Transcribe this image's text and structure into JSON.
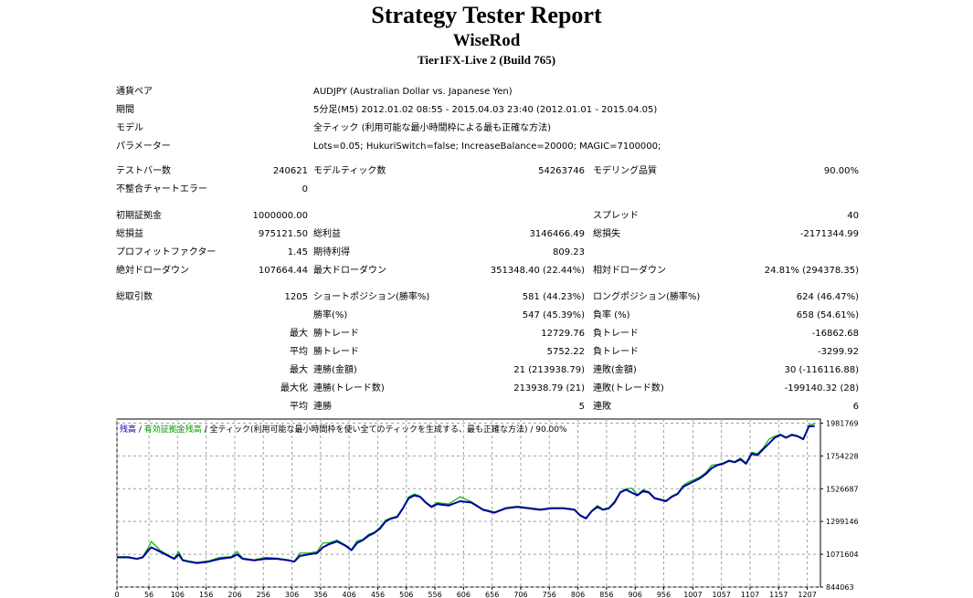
{
  "header": {
    "title": "Strategy Tester Report",
    "expert": "WiseRod",
    "server": "Tier1FX-Live 2 (Build 765)"
  },
  "info": {
    "symbol_label": "通貨ペア",
    "symbol_value": "AUDJPY (Australian Dollar vs. Japanese Yen)",
    "period_label": "期間",
    "period_value": "5分足(M5) 2012.01.02 08:55 - 2015.04.03 23:40 (2012.01.01 - 2015.04.05)",
    "model_label": "モデル",
    "model_value": "全ティック (利用可能な最小時間枠による最も正確な方法)",
    "params_label": "パラメーター",
    "params_value": "Lots=0.05; HukuriSwitch=false; IncreaseBalance=20000; MAGIC=7100000;"
  },
  "stats": {
    "bars_label": "テストバー数",
    "bars_value": "240621",
    "ticks_label": "モデルティック数",
    "ticks_value": "54263746",
    "quality_label": "モデリング品質",
    "quality_value": "90.00%",
    "mismatch_label": "不整合チャートエラー",
    "mismatch_value": "0",
    "deposit_label": "初期証拠金",
    "deposit_value": "1000000.00",
    "spread_label": "スプレッド",
    "spread_value": "40",
    "net_label": "総損益",
    "net_value": "975121.50",
    "gross_profit_label": "総利益",
    "gross_profit_value": "3146466.49",
    "gross_loss_label": "総損失",
    "gross_loss_value": "-2171344.99",
    "pf_label": "プロフィットファクター",
    "pf_value": "1.45",
    "expected_label": "期待利得",
    "expected_value": "809.23",
    "abs_dd_label": "絶対ドローダウン",
    "abs_dd_value": "107664.44",
    "max_dd_label": "最大ドローダウン",
    "max_dd_value": "351348.40 (22.44%)",
    "rel_dd_label": "相対ドローダウン",
    "rel_dd_value": "24.81% (294378.35)",
    "trades_label": "総取引数",
    "trades_value": "1205",
    "short_label": "ショートポジション(勝率%)",
    "short_value": "581 (44.23%)",
    "long_label": "ロングポジション(勝率%)",
    "long_value": "624 (46.47%)",
    "win_rate_label": "勝率(%)",
    "win_rate_value": "547 (45.39%)",
    "loss_rate_label": "負率 (%)",
    "loss_rate_value": "658 (54.61%)",
    "max_label": "最大",
    "win_trade_label": "勝トレード",
    "largest_win_value": "12729.76",
    "loss_trade_label": "負トレード",
    "largest_loss_value": "-16862.68",
    "avg_label": "平均",
    "avg_win_value": "5752.22",
    "avg_loss_value": "-3299.92",
    "consec_wins_money_label": "連勝(金額)",
    "consec_wins_money_value": "21 (213938.79)",
    "consec_losses_money_label": "連敗(金額)",
    "consec_losses_money_value": "30 (-116116.88)",
    "maxim_label": "最大化",
    "consec_profit_label": "連勝(トレード数)",
    "consec_profit_value": "213938.79 (21)",
    "consec_loss_label": "連敗(トレード数)",
    "consec_loss_value": "-199140.32 (28)",
    "consec_win_label": "連勝",
    "avg_consec_win_value": "5",
    "consec_lose_label": "連敗",
    "avg_consec_loss_value": "6"
  },
  "legend": {
    "balance": "残高",
    "sep1": " / ",
    "equity": "有効証拠金残高",
    "sep2": " / 全ティック(利用可能な最小時間枠を使い全てのティックを生成する、最も正確な方法) / 90.00%"
  },
  "colors": {
    "balance": "#0000a0",
    "equity": "#00b000",
    "grid": "#a0a0a0"
  },
  "chart_data": {
    "type": "line",
    "title": "",
    "xlabel": "",
    "ylabel": "",
    "xlim": [
      0,
      1230
    ],
    "ylim": [
      844063,
      2010000
    ],
    "x_ticks": [
      0,
      56,
      106,
      156,
      206,
      256,
      306,
      356,
      406,
      456,
      506,
      556,
      606,
      656,
      706,
      756,
      806,
      856,
      906,
      956,
      1007,
      1057,
      1107,
      1157,
      1207
    ],
    "y_ticks": [
      844063,
      1071604,
      1299146,
      1526687,
      1754228,
      1981769
    ],
    "grid": true,
    "legend_position": "top-left",
    "series": [
      {
        "name": "残高",
        "x": [
          0,
          20,
          35,
          45,
          55,
          60,
          75,
          90,
          100,
          108,
          115,
          125,
          140,
          160,
          180,
          200,
          210,
          220,
          240,
          260,
          280,
          300,
          310,
          320,
          335,
          350,
          360,
          370,
          385,
          400,
          410,
          420,
          430,
          440,
          450,
          460,
          470,
          480,
          490,
          500,
          510,
          520,
          530,
          540,
          550,
          560,
          580,
          600,
          620,
          640,
          660,
          680,
          700,
          720,
          740,
          760,
          780,
          800,
          810,
          820,
          830,
          840,
          850,
          860,
          870,
          880,
          890,
          900,
          910,
          920,
          930,
          940,
          950,
          960,
          970,
          980,
          990,
          1000,
          1010,
          1020,
          1030,
          1040,
          1050,
          1060,
          1070,
          1080,
          1090,
          1100,
          1110,
          1120,
          1130,
          1140,
          1150,
          1160,
          1170,
          1180,
          1190,
          1200,
          1210,
          1220
        ],
        "values": [
          1050000,
          1050000,
          1040000,
          1050000,
          1100000,
          1120000,
          1090000,
          1060000,
          1040000,
          1070000,
          1030000,
          1020000,
          1010000,
          1020000,
          1040000,
          1050000,
          1070000,
          1040000,
          1030000,
          1040000,
          1040000,
          1030000,
          1020000,
          1060000,
          1070000,
          1080000,
          1120000,
          1140000,
          1160000,
          1130000,
          1100000,
          1150000,
          1170000,
          1200000,
          1220000,
          1250000,
          1300000,
          1320000,
          1330000,
          1390000,
          1460000,
          1480000,
          1470000,
          1430000,
          1400000,
          1420000,
          1410000,
          1440000,
          1430000,
          1380000,
          1360000,
          1390000,
          1400000,
          1390000,
          1380000,
          1390000,
          1390000,
          1380000,
          1340000,
          1320000,
          1370000,
          1400000,
          1380000,
          1390000,
          1430000,
          1500000,
          1520000,
          1500000,
          1480000,
          1510000,
          1500000,
          1460000,
          1450000,
          1440000,
          1470000,
          1490000,
          1540000,
          1560000,
          1580000,
          1600000,
          1630000,
          1670000,
          1690000,
          1700000,
          1720000,
          1710000,
          1730000,
          1700000,
          1770000,
          1760000,
          1800000,
          1840000,
          1880000,
          1900000,
          1880000,
          1900000,
          1890000,
          1870000,
          1960000,
          1960000
        ]
      },
      {
        "name": "有効証拠金残高",
        "x": [
          0,
          20,
          35,
          45,
          55,
          60,
          75,
          90,
          100,
          108,
          115,
          125,
          140,
          160,
          180,
          200,
          210,
          220,
          240,
          260,
          280,
          300,
          310,
          320,
          335,
          350,
          360,
          370,
          385,
          400,
          410,
          420,
          430,
          440,
          450,
          460,
          470,
          480,
          490,
          500,
          510,
          520,
          530,
          540,
          550,
          560,
          580,
          600,
          620,
          640,
          660,
          680,
          700,
          720,
          740,
          760,
          780,
          800,
          810,
          820,
          830,
          840,
          850,
          860,
          870,
          880,
          890,
          900,
          910,
          920,
          930,
          940,
          950,
          960,
          970,
          980,
          990,
          1000,
          1010,
          1020,
          1030,
          1040,
          1050,
          1060,
          1070,
          1080,
          1090,
          1100,
          1110,
          1120,
          1130,
          1140,
          1150,
          1160,
          1170,
          1180,
          1190,
          1200,
          1210,
          1220
        ],
        "values": [
          1055000,
          1055000,
          1042000,
          1055000,
          1120000,
          1160000,
          1100000,
          1065000,
          1045000,
          1090000,
          1035000,
          1025000,
          1015000,
          1025000,
          1050000,
          1055000,
          1090000,
          1045000,
          1033000,
          1050000,
          1045000,
          1033000,
          1022000,
          1080000,
          1080000,
          1090000,
          1150000,
          1150000,
          1170000,
          1135000,
          1105000,
          1165000,
          1175000,
          1210000,
          1225000,
          1260000,
          1310000,
          1325000,
          1335000,
          1395000,
          1470000,
          1490000,
          1475000,
          1435000,
          1405000,
          1430000,
          1420000,
          1470000,
          1435000,
          1385000,
          1365000,
          1395000,
          1405000,
          1395000,
          1385000,
          1395000,
          1395000,
          1385000,
          1345000,
          1325000,
          1375000,
          1410000,
          1385000,
          1395000,
          1440000,
          1505000,
          1525000,
          1530000,
          1485000,
          1520000,
          1505000,
          1465000,
          1455000,
          1445000,
          1475000,
          1495000,
          1550000,
          1575000,
          1590000,
          1610000,
          1640000,
          1690000,
          1695000,
          1705000,
          1725000,
          1715000,
          1740000,
          1705000,
          1780000,
          1770000,
          1810000,
          1870000,
          1890000,
          1905000,
          1885000,
          1905000,
          1895000,
          1875000,
          1970000,
          1975000
        ]
      }
    ]
  }
}
